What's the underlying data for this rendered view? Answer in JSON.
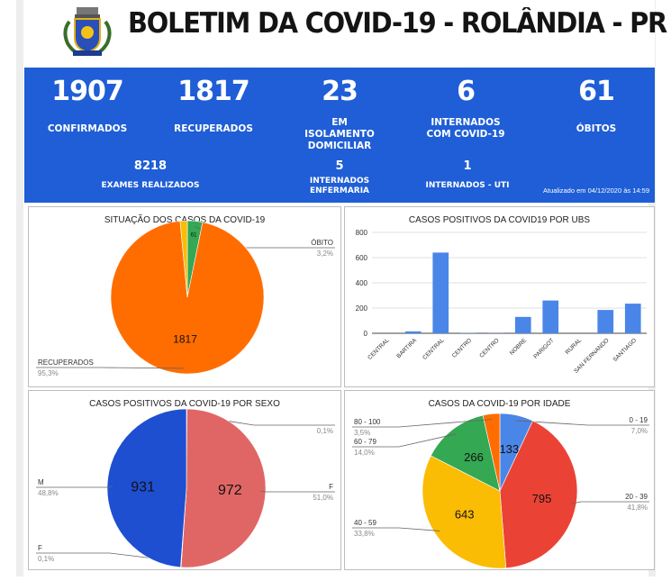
{
  "header": {
    "title": "BOLETIM DA COVID-19 - ROLÂNDIA - PR",
    "logo_icon": "city-coat-of-arms-icon"
  },
  "stats": [
    {
      "value": "1907",
      "label": "CONFIRMADOS"
    },
    {
      "value": "1817",
      "label": "RECUPERADOS"
    },
    {
      "value": "23",
      "label": "EM ISOLAMENTO DOMICILIAR"
    },
    {
      "value": "6",
      "label": "INTERNADOS COM COVID-19"
    },
    {
      "value": "61",
      "label": "ÓBITOS"
    }
  ],
  "substats": [
    {
      "value": "8218",
      "label": "EXAMES REALIZADOS"
    },
    {
      "value": "5",
      "label": "INTERNADOS ENFERMARIA"
    },
    {
      "value": "1",
      "label": "INTERNADOS - UTI"
    }
  ],
  "updated": "Atualizado em 04/12/2020 às 14:59",
  "colors": {
    "header_blue": "#1f5ed6",
    "orange": "#ff6d01",
    "green": "#34a853",
    "blue": "#1e4fd1",
    "pink": "#e06666",
    "red": "#ea4335",
    "yellow": "#fbbc04",
    "bar_blue": "#4a86e8"
  },
  "chart_data": [
    {
      "type": "pie",
      "title": "SITUAÇÃO DOS CASOS DA COVID-19",
      "slices": [
        {
          "label": "ÓBITO",
          "value": 61,
          "percent": "3,2%",
          "value_label": "61"
        },
        {
          "label": "RECUPERADOS",
          "value": 1817,
          "percent": "95,3%",
          "value_label": "1817"
        },
        {
          "label": "",
          "value": 29,
          "percent": "",
          "value_label": ""
        }
      ]
    },
    {
      "type": "bar",
      "title": "CASOS POSITIVOS DA COVID19 POR UBS",
      "categories": [
        "CENTRAL",
        "BARTIRA",
        "CENTRAL",
        "CENTRO",
        "CENTRO",
        "NOBRE",
        "PARIGOT",
        "RURAL",
        "SAN FERNANDO",
        "SANTIAGO"
      ],
      "values": [
        0,
        15,
        640,
        3,
        2,
        130,
        260,
        0,
        185,
        235
      ],
      "ylim": [
        0,
        800
      ],
      "yticks": [
        "0",
        "200",
        "400",
        "600",
        "800"
      ],
      "grid": true
    },
    {
      "type": "pie",
      "title": "CASOS POSITIVOS DA COVID-19 POR SEXO",
      "slices": [
        {
          "label": "",
          "value": 2,
          "percent": "0,1%",
          "value_label": ""
        },
        {
          "label": "F",
          "value": 972,
          "percent": "51,0%",
          "value_label": "972"
        },
        {
          "label": "F",
          "value": 2,
          "percent": "0,1%",
          "value_label": ""
        },
        {
          "label": "M",
          "value": 931,
          "percent": "48,8%",
          "value_label": "931"
        }
      ]
    },
    {
      "type": "pie",
      "title": "CASOS DA COVID-19 POR IDADE",
      "slices": [
        {
          "label": "0 - 19",
          "value": 133,
          "percent": "7,0%",
          "value_label": "133"
        },
        {
          "label": "20 - 39",
          "value": 795,
          "percent": "41,8%",
          "value_label": "795"
        },
        {
          "label": "40 - 59",
          "value": 643,
          "percent": "33,8%",
          "value_label": "643"
        },
        {
          "label": "60 - 79",
          "value": 266,
          "percent": "14,0%",
          "value_label": "266"
        },
        {
          "label": "80 - 100",
          "value": 67,
          "percent": "3,5%",
          "value_label": ""
        }
      ]
    }
  ]
}
